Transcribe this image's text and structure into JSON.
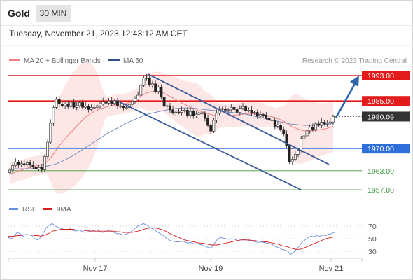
{
  "header": {
    "instrument": "Gold",
    "timeframe": "30 MIN"
  },
  "timestamp": "Tuesday, November 21, 2023 12:43:12 AM CET",
  "legend": {
    "ma_bb": "MA 20 + Bollinger Bands",
    "ma50": "MA 50",
    "credit": "Research © 2023 Trading Central"
  },
  "rsi_legend": {
    "rsi": "RSI",
    "ma9": "9MA"
  },
  "colors": {
    "resistance": "#e31b1b",
    "pivot": "#2f6fdc",
    "support": "#3a9a3a",
    "channel": "#3b5a9a",
    "bb_fill": "#fde2e2",
    "ma20": "#f08080",
    "ma50": "#6b84b8",
    "current": "#333333",
    "rsi": "#6a8fe0",
    "rsi_ma": "#d62020",
    "arrow": "#2f65a6"
  },
  "chart_data": [
    {
      "type": "candlestick",
      "title": "Gold 30 MIN",
      "y_range": [
        1950,
        1997
      ],
      "x_labels": [
        "Nov 17",
        "Nov 19",
        "Nov 21"
      ],
      "levels": [
        {
          "label": "1993.00",
          "value": 1993.0,
          "kind": "resistance"
        },
        {
          "label": "1985.00",
          "value": 1985.0,
          "kind": "resistance"
        },
        {
          "label": "1980.09",
          "value": 1980.09,
          "kind": "current"
        },
        {
          "label": "1970.00",
          "value": 1970.0,
          "kind": "pivot"
        },
        {
          "label": "1963.00",
          "value": 1963.0,
          "kind": "support"
        },
        {
          "label": "1957.00",
          "value": 1957.0,
          "kind": "support"
        }
      ],
      "candle_closes": [
        1963.2,
        1964.6,
        1965.7,
        1964.8,
        1965.2,
        1965.0,
        1965.5,
        1964.8,
        1964.1,
        1963.5,
        1964.0,
        1963.3,
        1967.5,
        1972.0,
        1978.0,
        1983.0,
        1985.5,
        1984.0,
        1983.5,
        1984.0,
        1983.2,
        1984.6,
        1983.0,
        1983.5,
        1984.5,
        1983.0,
        1983.4,
        1982.3,
        1983.0,
        1983.0,
        1983.5,
        1984.0,
        1984.8,
        1984.3,
        1985.0,
        1984.2,
        1985.1,
        1983.4,
        1983.4,
        1982.9,
        1982.9,
        1983.9,
        1985.0,
        1985.6,
        1986.8,
        1989.9,
        1992.2,
        1992.3,
        1990.0,
        1990.4,
        1988.0,
        1989.3,
        1986.2,
        1983.3,
        1983.5,
        1982.2,
        1981.3,
        1981.5,
        1981.4,
        1982.0,
        1982.1,
        1980.5,
        1981.7,
        1980.3,
        1980.8,
        1981.3,
        1981.0,
        1979.5,
        1977.3,
        1975.5,
        1978.9,
        1981.1,
        1982.6,
        1982.5,
        1982.1,
        1982.2,
        1983.0,
        1982.3,
        1981.4,
        1982.7,
        1983.2,
        1982.0,
        1982.1,
        1981.3,
        1981.4,
        1980.2,
        1980.7,
        1980.6,
        1979.5,
        1978.9,
        1979.0,
        1977.0,
        1977.4,
        1976.0,
        1974.5,
        1971.0,
        1965.8,
        1966.6,
        1968.2,
        1969.4,
        1973.1,
        1974.0,
        1975.6,
        1976.7,
        1976.0,
        1977.8,
        1977.3,
        1978.3,
        1977.8,
        1978.1,
        1978.4,
        1980.1
      ],
      "ma20": [
        1962.0,
        1962.3,
        1962.6,
        1962.9,
        1963.2,
        1963.5,
        1963.8,
        1964.1,
        1964.3,
        1964.5,
        1964.7,
        1964.9,
        1965.3,
        1966.0,
        1967.0,
        1968.3,
        1969.7,
        1970.9,
        1972.0,
        1973.1,
        1974.1,
        1975.1,
        1976.1,
        1977.1,
        1978.1,
        1979.0,
        1979.9,
        1980.6,
        1981.2,
        1981.7,
        1982.1,
        1982.5,
        1982.8,
        1983.1,
        1983.4,
        1983.6,
        1983.8,
        1983.9,
        1984.0,
        1984.1,
        1984.2,
        1984.5,
        1984.9,
        1985.4,
        1986.0,
        1986.6,
        1987.1,
        1987.5,
        1987.8,
        1988.0,
        1988.1,
        1988.0,
        1987.8,
        1987.4,
        1986.9,
        1986.4,
        1985.9,
        1985.4,
        1984.9,
        1984.4,
        1983.9,
        1983.5,
        1983.1,
        1982.7,
        1982.3,
        1981.9,
        1981.6,
        1981.3,
        1981.0,
        1980.7,
        1980.5,
        1980.4,
        1980.3,
        1980.3,
        1980.3,
        1980.3,
        1980.4,
        1980.5,
        1980.6,
        1980.7,
        1980.8,
        1980.9,
        1980.9,
        1980.9,
        1980.9,
        1980.8,
        1980.7,
        1980.6,
        1980.4,
        1980.2,
        1980.0,
        1979.7,
        1979.4,
        1979.1,
        1978.6,
        1978.0,
        1977.4,
        1976.9,
        1976.5,
        1976.1,
        1975.8,
        1975.6,
        1975.5,
        1975.5,
        1975.6,
        1975.7,
        1975.8,
        1976.0,
        1976.2,
        1976.4,
        1976.7,
        1977.0
      ],
      "ma50": [
        1963.6,
        1963.6,
        1963.6,
        1963.6,
        1963.6,
        1963.6,
        1963.6,
        1963.6,
        1963.7,
        1963.8,
        1963.9,
        1964.1,
        1964.3,
        1964.5,
        1964.7,
        1964.9,
        1965.2,
        1965.6,
        1966.0,
        1966.4,
        1966.9,
        1967.4,
        1967.9,
        1968.5,
        1969.1,
        1969.7,
        1970.3,
        1970.9,
        1971.5,
        1972.1,
        1972.7,
        1973.3,
        1973.9,
        1974.5,
        1975.0,
        1975.5,
        1976.0,
        1976.5,
        1977.0,
        1977.5,
        1978.0,
        1978.4,
        1978.8,
        1979.2,
        1979.6,
        1980.0,
        1980.4,
        1980.7,
        1981.0,
        1981.2,
        1981.4,
        1981.6,
        1981.8,
        1982.0,
        1982.2,
        1982.4,
        1982.5,
        1982.6,
        1982.7,
        1982.8,
        1982.8,
        1982.8,
        1982.8,
        1982.7,
        1982.6,
        1982.5,
        1982.4,
        1982.3,
        1982.2,
        1982.1,
        1982.0,
        1981.9,
        1981.8,
        1981.7,
        1981.6,
        1981.5,
        1981.4,
        1981.3,
        1981.2,
        1981.1,
        1981.0,
        1980.8,
        1980.6,
        1980.4,
        1980.2,
        1980.0,
        1979.8,
        1979.6,
        1979.4,
        1979.2,
        1979.0,
        1978.8,
        1978.6,
        1978.4,
        1978.2,
        1978.0,
        1977.8,
        1977.7,
        1977.6,
        1977.5,
        1977.4,
        1977.3,
        1977.3,
        1977.3,
        1977.3,
        1977.3,
        1977.4,
        1977.5,
        1977.6,
        1977.7,
        1977.8,
        1977.9
      ],
      "channel": [
        {
          "from": 1993.5,
          "to": 1965.0
        },
        {
          "from": 1985.0,
          "to": 1957.0
        }
      ]
    },
    {
      "type": "line",
      "title": "RSI",
      "y_ticks": [
        70,
        50,
        30
      ],
      "series": [
        {
          "name": "RSI",
          "values": [
            52,
            50,
            55,
            60,
            58,
            54,
            57,
            56,
            55,
            50,
            48,
            52,
            60,
            68,
            72,
            74,
            70,
            68,
            66,
            65,
            64,
            66,
            63,
            62,
            64,
            62,
            60,
            61,
            62,
            63,
            64,
            62,
            60,
            61,
            63,
            62,
            60,
            58,
            58,
            56,
            57,
            59,
            62,
            66,
            70,
            72,
            74,
            72,
            68,
            66,
            63,
            60,
            57,
            54,
            50,
            47,
            46,
            45,
            45,
            46,
            45,
            43,
            44,
            42,
            42,
            41,
            40,
            38,
            36,
            35,
            42,
            48,
            52,
            51,
            50,
            49,
            50,
            49,
            47,
            48,
            49,
            48,
            47,
            46,
            45,
            44,
            45,
            44,
            43,
            42,
            40,
            37,
            36,
            33,
            32,
            30,
            25,
            28,
            33,
            38,
            45,
            48,
            52,
            54,
            53,
            55,
            54,
            56,
            55,
            57,
            58,
            60
          ]
        },
        {
          "name": "9MA",
          "values": [
            54,
            54,
            54,
            55,
            55,
            56,
            56,
            56,
            56,
            55,
            55,
            54,
            55,
            57,
            59,
            62,
            63,
            64,
            65,
            65,
            65,
            65,
            65,
            64,
            64,
            64,
            63,
            63,
            62,
            62,
            62,
            62,
            62,
            62,
            62,
            62,
            62,
            61,
            61,
            60,
            60,
            60,
            60,
            61,
            62,
            63,
            65,
            66,
            67,
            67,
            67,
            66,
            65,
            63,
            61,
            58,
            56,
            54,
            52,
            50,
            48,
            47,
            46,
            45,
            44,
            43,
            43,
            42,
            41,
            40,
            40,
            40,
            41,
            42,
            43,
            44,
            45,
            46,
            47,
            48,
            48,
            48,
            48,
            47,
            47,
            46,
            46,
            45,
            45,
            44,
            43,
            42,
            41,
            39,
            38,
            37,
            35,
            34,
            33,
            33,
            34,
            36,
            38,
            40,
            42,
            44,
            46,
            48,
            50,
            51,
            52,
            53
          ]
        }
      ]
    }
  ]
}
